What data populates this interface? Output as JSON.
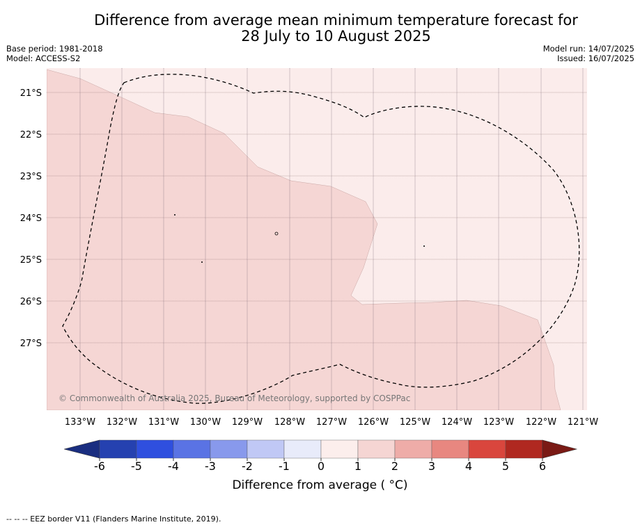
{
  "title_line1": "Difference from average mean minimum temperature forecast for",
  "title_line2": "28 July to 10 August 2025",
  "base_period": "Base period: 1981-2018",
  "model": "Model: ACCESS-S2",
  "model_run": "Model run: 14/07/2025",
  "issued": "Issued: 16/07/2025",
  "copyright": "© Commonwealth of Australia 2025, Bureau of Meteorology, supported by COSPPac",
  "lat_labels": [
    "21°S",
    "22°S",
    "23°S",
    "24°S",
    "25°S",
    "26°S",
    "27°S"
  ],
  "lon_labels": [
    "133°W",
    "132°W",
    "131°W",
    "130°W",
    "129°W",
    "128°W",
    "127°W",
    "126°W",
    "125°W",
    "124°W",
    "123°W",
    "122°W",
    "121°W"
  ],
  "colorbar": {
    "ticks": [
      "-6",
      "-5",
      "-4",
      "-3",
      "-2",
      "-1",
      "0",
      "1",
      "2",
      "3",
      "4",
      "5",
      "6"
    ],
    "colors": [
      "#2541b0",
      "#2f4fdf",
      "#5a73e4",
      "#8899ec",
      "#c0c8f5",
      "#e8ebfa",
      "#fceeec",
      "#f5d5d3",
      "#eeaca8",
      "#e88780",
      "#d9463d",
      "#b02820"
    ],
    "low_extend_color": "#1a2e80",
    "high_extend_color": "#7a1a15",
    "label": "Difference from average ( °C)"
  },
  "zone_colors": {
    "band_0_1": "#fbeceb",
    "band_1_2": "#f5d6d4"
  },
  "footer": "--  --  -- EEZ border V11 (Flanders Marine Institute, 2019)."
}
